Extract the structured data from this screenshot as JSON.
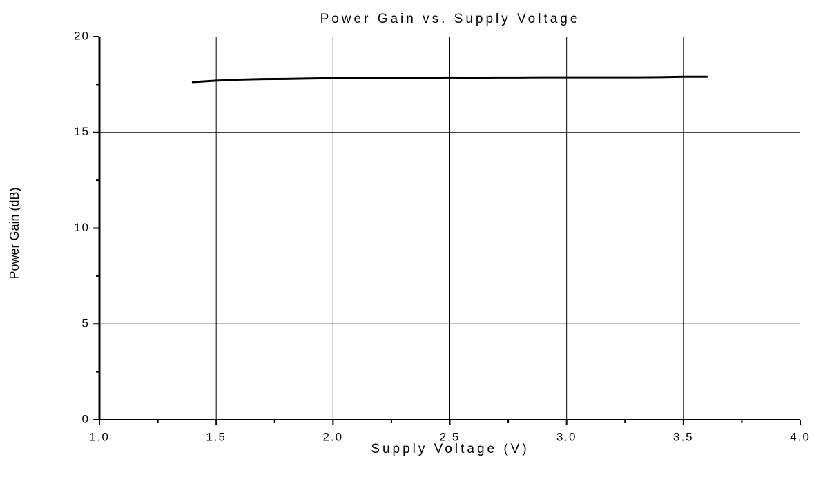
{
  "chart_data": {
    "type": "line",
    "title": "Power Gain vs. Supply Voltage",
    "xlabel": "Supply Voltage (V)",
    "ylabel": "Power Gain (dB)",
    "x": [
      1.4,
      1.5,
      1.6,
      1.7,
      1.8,
      1.9,
      2.0,
      2.1,
      2.2,
      2.3,
      2.4,
      2.5,
      2.6,
      2.7,
      2.8,
      2.9,
      3.0,
      3.1,
      3.2,
      3.3,
      3.4,
      3.5,
      3.6
    ],
    "series": [
      {
        "name": "Power Gain",
        "color": "#000000",
        "values": [
          17.62,
          17.7,
          17.75,
          17.78,
          17.79,
          17.81,
          17.83,
          17.82,
          17.84,
          17.84,
          17.85,
          17.86,
          17.85,
          17.86,
          17.86,
          17.87,
          17.87,
          17.87,
          17.87,
          17.87,
          17.88,
          17.9,
          17.9
        ]
      }
    ],
    "xlim": [
      1,
      4
    ],
    "xticks": [
      {
        "value": 1,
        "label": "1.0"
      },
      1.5,
      {
        "value": 2,
        "label": "2.0"
      },
      2.5,
      {
        "value": 3,
        "label": "3.0"
      },
      3.5,
      {
        "value": 4,
        "label": "4.0"
      }
    ],
    "xminorticks": [
      1.25,
      1.75,
      2.25,
      2.75,
      3.25,
      3.75
    ],
    "ylim": [
      0,
      20
    ],
    "yticks": [
      0,
      5,
      10,
      15,
      20
    ],
    "yminorticks": [
      2.5,
      7.5,
      12.5,
      17.5
    ],
    "grid": true
  }
}
